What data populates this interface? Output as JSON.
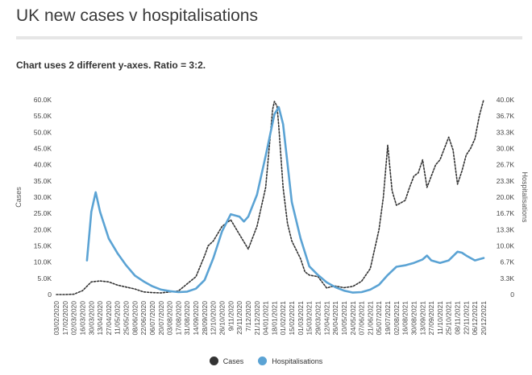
{
  "page": {
    "title": "UK new cases v hospitalisations",
    "subtitle": "Chart uses 2 different y-axes. Ratio =  3:2."
  },
  "chart_data": {
    "type": "line",
    "title": "UK new cases v hospitalisations",
    "left_axis_label": "Cases",
    "right_axis_label": "Hospitalisations",
    "left_ylim": [
      0,
      60000
    ],
    "right_ylim": [
      0,
      40000
    ],
    "left_ticks": [
      "0",
      "5.0K",
      "10.0K",
      "15.0K",
      "20.0K",
      "25.0K",
      "30.0K",
      "35.0K",
      "40.0K",
      "45.0K",
      "50.0K",
      "55.0K",
      "60.0K"
    ],
    "right_ticks": [
      "0",
      "3.3K",
      "6.7K",
      "10.0K",
      "13.3K",
      "16.7K",
      "20.0K",
      "23.3K",
      "26.7K",
      "30.0K",
      "33.3K",
      "36.7K",
      "40.0K"
    ],
    "x_tick_labels": [
      "03/02/2020",
      "17/02/2020",
      "02/03/2020",
      "16/03/2020",
      "30/03/2020",
      "13/04/2020",
      "27/04/2020",
      "11/05/2020",
      "25/05/2020",
      "08/06/2020",
      "22/06/2020",
      "06/07/2020",
      "20/07/2020",
      "03/08/2020",
      "17/08/2020",
      "31/08/2020",
      "14/09/2020",
      "28/09/2020",
      "12/10/2020",
      "26/10/2020",
      "9/11/2020",
      "23/11/2020",
      "7/12/2020",
      "21/12/2020",
      "04/01/2021",
      "18/01/2021",
      "01/02/2021",
      "15/02/2021",
      "01/03/2021",
      "15/03/2021",
      "29/03/2021",
      "12/04/2021",
      "26/04/2021",
      "10/05/2021",
      "24/05/2021",
      "07/06/2021",
      "21/06/2021",
      "05/07/2021",
      "19/07/2021",
      "02/08/2021",
      "16/08/2021",
      "30/08/2021",
      "13/09/2021",
      "27/09/2021",
      "11/10/2021",
      "25/10/2021",
      "08/11/2021",
      "22/11/2021",
      "06/12/2021",
      "20/12/2021"
    ],
    "x_range": [
      0,
      49
    ],
    "series": [
      {
        "name": "Cases",
        "color": "#333333",
        "style": "dotted",
        "axis": "left",
        "points": [
          [
            0,
            0
          ],
          [
            1,
            0
          ],
          [
            2,
            100
          ],
          [
            3,
            1200
          ],
          [
            4,
            3900
          ],
          [
            5,
            4200
          ],
          [
            6,
            3900
          ],
          [
            7,
            2900
          ],
          [
            8,
            2300
          ],
          [
            9,
            1700
          ],
          [
            10,
            800
          ],
          [
            11,
            600
          ],
          [
            12,
            500
          ],
          [
            13,
            800
          ],
          [
            14,
            1100
          ],
          [
            15,
            3300
          ],
          [
            16,
            5500
          ],
          [
            17,
            12000
          ],
          [
            17.4,
            15000
          ],
          [
            18,
            16500
          ],
          [
            19,
            21000
          ],
          [
            20,
            23000
          ],
          [
            21,
            18500
          ],
          [
            22,
            14000
          ],
          [
            23,
            21000
          ],
          [
            24,
            33000
          ],
          [
            24.8,
            57000
          ],
          [
            25,
            59500
          ],
          [
            25.3,
            58000
          ],
          [
            25.5,
            52000
          ],
          [
            26,
            33000
          ],
          [
            26.5,
            22000
          ],
          [
            27,
            16500
          ],
          [
            28,
            11000
          ],
          [
            28.5,
            7000
          ],
          [
            29,
            6000
          ],
          [
            30,
            5500
          ],
          [
            31,
            2000
          ],
          [
            31.5,
            2400
          ],
          [
            32,
            2600
          ],
          [
            33,
            2100
          ],
          [
            34,
            2500
          ],
          [
            35,
            4100
          ],
          [
            36,
            8000
          ],
          [
            37,
            20000
          ],
          [
            37.5,
            30000
          ],
          [
            38,
            46000
          ],
          [
            38.5,
            32000
          ],
          [
            39,
            27500
          ],
          [
            40,
            29000
          ],
          [
            40.5,
            33000
          ],
          [
            41,
            36500
          ],
          [
            41.5,
            37500
          ],
          [
            42,
            41500
          ],
          [
            42.5,
            33000
          ],
          [
            43,
            36500
          ],
          [
            43.5,
            40000
          ],
          [
            44,
            41500
          ],
          [
            44.5,
            45000
          ],
          [
            45,
            48500
          ],
          [
            45.5,
            44500
          ],
          [
            46,
            34000
          ],
          [
            46.5,
            38000
          ],
          [
            47,
            43000
          ],
          [
            47.5,
            45000
          ],
          [
            48,
            48000
          ],
          [
            48.5,
            55000
          ],
          [
            49,
            60000
          ]
        ]
      },
      {
        "name": "Hospitalisations",
        "color": "#5ba3d4",
        "style": "solid",
        "axis": "right",
        "points": [
          [
            3.5,
            7000
          ],
          [
            4,
            17000
          ],
          [
            4.5,
            21000
          ],
          [
            5,
            17000
          ],
          [
            6,
            11500
          ],
          [
            7,
            8500
          ],
          [
            8,
            6000
          ],
          [
            9,
            3900
          ],
          [
            10,
            2700
          ],
          [
            11,
            1700
          ],
          [
            12,
            1000
          ],
          [
            13,
            700
          ],
          [
            14,
            500
          ],
          [
            15,
            600
          ],
          [
            16,
            1200
          ],
          [
            17,
            3000
          ],
          [
            18,
            7500
          ],
          [
            19,
            13000
          ],
          [
            20,
            16500
          ],
          [
            21,
            16000
          ],
          [
            21.5,
            15000
          ],
          [
            22,
            16000
          ],
          [
            23,
            20500
          ],
          [
            24,
            28500
          ],
          [
            25,
            37000
          ],
          [
            25.5,
            38500
          ],
          [
            26,
            35000
          ],
          [
            26.5,
            27000
          ],
          [
            27,
            19000
          ],
          [
            28,
            11500
          ],
          [
            29,
            5800
          ],
          [
            30,
            4000
          ],
          [
            31,
            2500
          ],
          [
            32,
            1500
          ],
          [
            33,
            800
          ],
          [
            34,
            400
          ],
          [
            35,
            500
          ],
          [
            36,
            1000
          ],
          [
            37,
            2000
          ],
          [
            38,
            4000
          ],
          [
            39,
            5700
          ],
          [
            40,
            6000
          ],
          [
            41,
            6500
          ],
          [
            42,
            7200
          ],
          [
            42.5,
            8000
          ],
          [
            43,
            7000
          ],
          [
            44,
            6500
          ],
          [
            45,
            7000
          ],
          [
            46,
            8800
          ],
          [
            46.5,
            8600
          ],
          [
            47,
            8000
          ],
          [
            48,
            7000
          ],
          [
            49,
            7500
          ]
        ]
      }
    ]
  },
  "legend": {
    "cases_label": "Cases",
    "hosp_label": "Hospitalisations",
    "cases_color": "#333333",
    "hosp_color": "#5ba3d4"
  }
}
